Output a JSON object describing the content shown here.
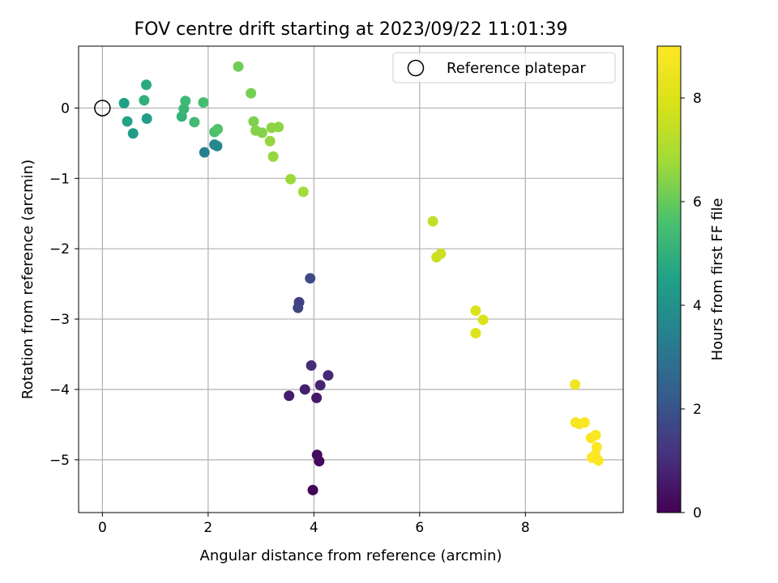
{
  "chart_data": {
    "type": "scatter",
    "title": "FOV centre drift starting at 2023/09/22 11:01:39",
    "xlabel": "Angular distance from reference (arcmin)",
    "ylabel": "Rotation from reference (arcmin)",
    "xlim": [
      -0.45,
      9.85
    ],
    "ylim": [
      -5.75,
      0.88
    ],
    "xticks": [
      0,
      2,
      4,
      6,
      8
    ],
    "yticks": [
      0,
      -1,
      -2,
      -3,
      -4,
      -5
    ],
    "grid": true,
    "legend": {
      "placement": "top-right",
      "entries": [
        "Reference platepar"
      ]
    },
    "reference_point": {
      "x": 0.0,
      "y": 0.0
    },
    "colorbar": {
      "label": "Hours from first FF file",
      "colormap": "viridis",
      "range": [
        0,
        9
      ],
      "ticks": [
        0,
        2,
        4,
        6,
        8
      ]
    },
    "points": [
      {
        "x": 3.98,
        "y": -5.43,
        "c": 0.1
      },
      {
        "x": 4.1,
        "y": -5.02,
        "c": 0.2
      },
      {
        "x": 4.06,
        "y": -4.93,
        "c": 0.3
      },
      {
        "x": 4.05,
        "y": -4.12,
        "c": 0.5
      },
      {
        "x": 3.53,
        "y": -4.09,
        "c": 0.6
      },
      {
        "x": 3.83,
        "y": -4.0,
        "c": 0.7
      },
      {
        "x": 4.12,
        "y": -3.94,
        "c": 0.8
      },
      {
        "x": 4.27,
        "y": -3.8,
        "c": 0.9
      },
      {
        "x": 3.95,
        "y": -3.66,
        "c": 1.0
      },
      {
        "x": 3.72,
        "y": -2.76,
        "c": 1.5
      },
      {
        "x": 3.7,
        "y": -2.84,
        "c": 1.6
      },
      {
        "x": 3.93,
        "y": -2.42,
        "c": 1.8
      },
      {
        "x": 1.93,
        "y": -0.63,
        "c": 3.4
      },
      {
        "x": 2.12,
        "y": -0.52,
        "c": 3.6
      },
      {
        "x": 2.17,
        "y": -0.54,
        "c": 3.7
      },
      {
        "x": 0.58,
        "y": -0.36,
        "c": 4.3
      },
      {
        "x": 0.84,
        "y": -0.15,
        "c": 4.4
      },
      {
        "x": 0.41,
        "y": 0.07,
        "c": 4.5
      },
      {
        "x": 0.47,
        "y": -0.19,
        "c": 4.6
      },
      {
        "x": 0.83,
        "y": 0.33,
        "c": 4.8
      },
      {
        "x": 0.79,
        "y": 0.11,
        "c": 5.0
      },
      {
        "x": 1.5,
        "y": -0.12,
        "c": 5.1
      },
      {
        "x": 1.54,
        "y": -0.01,
        "c": 5.2
      },
      {
        "x": 1.57,
        "y": 0.1,
        "c": 5.3
      },
      {
        "x": 1.74,
        "y": -0.2,
        "c": 5.4
      },
      {
        "x": 1.91,
        "y": 0.08,
        "c": 5.5
      },
      {
        "x": 2.12,
        "y": -0.34,
        "c": 5.6
      },
      {
        "x": 2.18,
        "y": -0.3,
        "c": 5.7
      },
      {
        "x": 2.57,
        "y": 0.59,
        "c": 6.1
      },
      {
        "x": 2.81,
        "y": 0.21,
        "c": 6.2
      },
      {
        "x": 2.86,
        "y": -0.19,
        "c": 6.3
      },
      {
        "x": 2.9,
        "y": -0.32,
        "c": 6.4
      },
      {
        "x": 3.02,
        "y": -0.35,
        "c": 6.4
      },
      {
        "x": 3.2,
        "y": -0.28,
        "c": 6.5
      },
      {
        "x": 3.33,
        "y": -0.27,
        "c": 6.5
      },
      {
        "x": 3.17,
        "y": -0.47,
        "c": 6.6
      },
      {
        "x": 3.23,
        "y": -0.69,
        "c": 6.6
      },
      {
        "x": 3.56,
        "y": -1.01,
        "c": 6.7
      },
      {
        "x": 3.8,
        "y": -1.19,
        "c": 6.8
      },
      {
        "x": 6.25,
        "y": -1.61,
        "c": 7.4
      },
      {
        "x": 6.4,
        "y": -2.07,
        "c": 7.6
      },
      {
        "x": 6.32,
        "y": -2.12,
        "c": 7.6
      },
      {
        "x": 7.06,
        "y": -2.88,
        "c": 8.0
      },
      {
        "x": 7.2,
        "y": -3.01,
        "c": 8.0
      },
      {
        "x": 7.06,
        "y": -3.2,
        "c": 8.1
      },
      {
        "x": 8.94,
        "y": -3.93,
        "c": 8.6
      },
      {
        "x": 8.95,
        "y": -4.47,
        "c": 8.8
      },
      {
        "x": 9.02,
        "y": -4.49,
        "c": 8.8
      },
      {
        "x": 9.12,
        "y": -4.47,
        "c": 8.9
      },
      {
        "x": 9.24,
        "y": -4.69,
        "c": 8.9
      },
      {
        "x": 9.33,
        "y": -4.65,
        "c": 8.9
      },
      {
        "x": 9.35,
        "y": -4.82,
        "c": 9.0
      },
      {
        "x": 9.26,
        "y": -4.97,
        "c": 9.0
      },
      {
        "x": 9.32,
        "y": -4.93,
        "c": 9.0
      },
      {
        "x": 9.38,
        "y": -5.01,
        "c": 9.0
      }
    ]
  }
}
